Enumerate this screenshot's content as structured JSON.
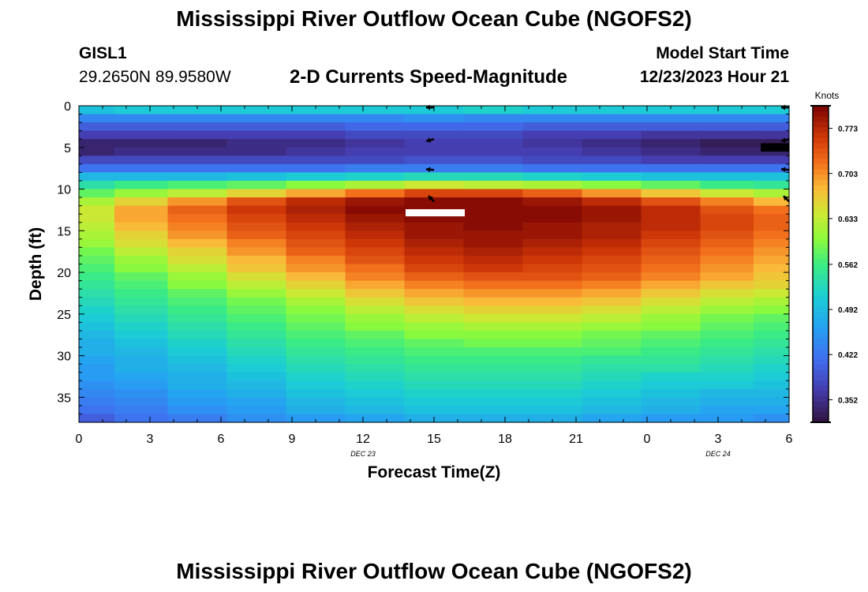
{
  "header": {
    "title": "Mississippi River Outflow Ocean Cube (NGOFS2)",
    "station_id": "GISL1",
    "coords": "29.2650N  89.9580W",
    "subtitle": "2-D Currents Speed-Magnitude",
    "model_start_label": "Model Start Time",
    "model_start_value": "12/23/2023 Hour 21"
  },
  "footer": {
    "repeat_title": "Mississippi River Outflow Ocean Cube (NGOFS2)"
  },
  "chart_data": {
    "type": "heatmap",
    "xlabel": "Forecast Time(Z)",
    "ylabel": "Depth (ft)",
    "x_range_hours": [
      0,
      30
    ],
    "x_tick_hours": [
      0,
      3,
      6,
      9,
      12,
      15,
      18,
      21,
      24,
      27,
      30
    ],
    "x_tick_labels": [
      "0",
      "3",
      "6",
      "9",
      "12",
      "15",
      "18",
      "21",
      "0",
      "3",
      "6"
    ],
    "date_labels": [
      {
        "hour": 12,
        "text": "DEC 23"
      },
      {
        "hour": 27,
        "text": "DEC 24"
      }
    ],
    "y_range_ft": [
      0,
      38
    ],
    "y_ticks": [
      0,
      5,
      10,
      15,
      20,
      25,
      30,
      35
    ],
    "y_tick_labels": [
      "0",
      "5",
      "10",
      "15",
      "20",
      "25",
      "30",
      "35"
    ],
    "colorbar": {
      "unit": "Knots",
      "min": 0.317,
      "max": 0.808,
      "tick_values": [
        0.352,
        0.422,
        0.492,
        0.562,
        0.633,
        0.703,
        0.773
      ],
      "tick_labels": [
        "0.352",
        "0.422",
        "0.492",
        "0.562",
        "0.633",
        "0.703",
        "0.773"
      ]
    },
    "time_columns_hours": [
      0.5,
      2.5,
      5,
      7.5,
      10,
      12.5,
      15,
      17.5,
      20,
      22.5,
      25,
      27.5,
      29.5
    ],
    "depth_rows_ft": [
      0.5,
      1.5,
      2.5,
      3.5,
      4.5,
      5.5,
      6.5,
      7.5,
      8.5,
      9.5,
      10.5,
      11.5,
      12.5,
      13.5,
      14.5,
      15.5,
      16.5,
      17.5,
      18.5,
      19.5,
      20.5,
      21.5,
      22.5,
      23.5,
      24.5,
      25.5,
      26.5,
      27.5,
      28.5,
      29.5,
      30.5,
      31.5,
      32.5,
      33.5,
      34.5,
      35.5,
      36.5,
      37.5
    ],
    "speed_knots": [
      [
        0.5,
        0.51,
        0.51,
        0.51,
        0.51,
        0.51,
        0.51,
        0.52,
        0.51,
        0.51,
        0.51,
        0.51,
        0.51
      ],
      [
        0.44,
        0.44,
        0.44,
        0.44,
        0.44,
        0.44,
        0.45,
        0.44,
        0.44,
        0.44,
        0.44,
        0.44,
        0.44
      ],
      [
        0.4,
        0.4,
        0.4,
        0.4,
        0.4,
        0.41,
        0.41,
        0.41,
        0.4,
        0.4,
        0.4,
        0.4,
        0.4
      ],
      [
        0.37,
        0.37,
        0.37,
        0.37,
        0.37,
        0.38,
        0.38,
        0.38,
        0.37,
        0.37,
        0.36,
        0.36,
        0.36
      ],
      [
        0.34,
        0.34,
        0.34,
        0.35,
        0.35,
        0.36,
        0.37,
        0.37,
        0.36,
        0.35,
        0.34,
        0.33,
        0.33
      ],
      [
        0.34,
        0.35,
        0.35,
        0.35,
        0.36,
        0.37,
        0.37,
        0.37,
        0.37,
        0.36,
        0.35,
        0.34,
        0.34
      ],
      [
        0.38,
        0.38,
        0.38,
        0.38,
        0.38,
        0.38,
        0.39,
        0.39,
        0.38,
        0.38,
        0.37,
        0.37,
        0.37
      ],
      [
        0.42,
        0.42,
        0.42,
        0.42,
        0.42,
        0.43,
        0.43,
        0.43,
        0.42,
        0.42,
        0.42,
        0.42,
        0.42
      ],
      [
        0.49,
        0.49,
        0.49,
        0.5,
        0.51,
        0.52,
        0.53,
        0.53,
        0.52,
        0.51,
        0.5,
        0.5,
        0.5
      ],
      [
        0.54,
        0.56,
        0.57,
        0.58,
        0.6,
        0.62,
        0.64,
        0.63,
        0.62,
        0.6,
        0.58,
        0.56,
        0.55
      ],
      [
        0.58,
        0.61,
        0.63,
        0.66,
        0.69,
        0.72,
        0.75,
        0.75,
        0.73,
        0.7,
        0.67,
        0.64,
        0.62
      ],
      [
        0.62,
        0.66,
        0.7,
        0.74,
        0.77,
        0.79,
        0.8,
        0.8,
        0.79,
        0.77,
        0.74,
        0.71,
        0.68
      ],
      [
        0.64,
        0.69,
        0.73,
        0.76,
        0.78,
        0.8,
        0.8,
        0.8,
        0.8,
        0.79,
        0.77,
        0.74,
        0.72
      ],
      [
        0.64,
        0.69,
        0.72,
        0.75,
        0.77,
        0.79,
        0.8,
        0.8,
        0.8,
        0.79,
        0.77,
        0.75,
        0.73
      ],
      [
        0.63,
        0.68,
        0.71,
        0.74,
        0.76,
        0.78,
        0.79,
        0.8,
        0.79,
        0.78,
        0.77,
        0.75,
        0.73
      ],
      [
        0.62,
        0.66,
        0.7,
        0.73,
        0.75,
        0.77,
        0.79,
        0.79,
        0.79,
        0.78,
        0.76,
        0.74,
        0.72
      ],
      [
        0.61,
        0.65,
        0.68,
        0.71,
        0.74,
        0.76,
        0.78,
        0.79,
        0.78,
        0.77,
        0.75,
        0.73,
        0.71
      ],
      [
        0.59,
        0.63,
        0.66,
        0.7,
        0.73,
        0.75,
        0.77,
        0.78,
        0.77,
        0.76,
        0.74,
        0.72,
        0.7
      ],
      [
        0.58,
        0.61,
        0.65,
        0.68,
        0.71,
        0.74,
        0.76,
        0.77,
        0.76,
        0.75,
        0.73,
        0.71,
        0.69
      ],
      [
        0.57,
        0.6,
        0.63,
        0.67,
        0.7,
        0.72,
        0.75,
        0.76,
        0.75,
        0.74,
        0.72,
        0.7,
        0.68
      ],
      [
        0.56,
        0.58,
        0.61,
        0.65,
        0.68,
        0.71,
        0.73,
        0.74,
        0.74,
        0.73,
        0.71,
        0.69,
        0.67
      ],
      [
        0.55,
        0.57,
        0.6,
        0.63,
        0.66,
        0.69,
        0.71,
        0.72,
        0.72,
        0.71,
        0.69,
        0.67,
        0.66
      ],
      [
        0.54,
        0.56,
        0.58,
        0.61,
        0.64,
        0.67,
        0.69,
        0.7,
        0.7,
        0.69,
        0.67,
        0.65,
        0.64
      ],
      [
        0.53,
        0.55,
        0.57,
        0.59,
        0.62,
        0.65,
        0.67,
        0.68,
        0.68,
        0.67,
        0.65,
        0.63,
        0.62
      ],
      [
        0.52,
        0.54,
        0.56,
        0.58,
        0.6,
        0.63,
        0.65,
        0.66,
        0.66,
        0.65,
        0.63,
        0.61,
        0.6
      ],
      [
        0.51,
        0.53,
        0.55,
        0.57,
        0.59,
        0.61,
        0.63,
        0.64,
        0.64,
        0.63,
        0.61,
        0.59,
        0.58
      ],
      [
        0.5,
        0.52,
        0.54,
        0.56,
        0.58,
        0.6,
        0.61,
        0.62,
        0.62,
        0.61,
        0.6,
        0.58,
        0.57
      ],
      [
        0.49,
        0.51,
        0.53,
        0.55,
        0.57,
        0.58,
        0.6,
        0.6,
        0.6,
        0.59,
        0.58,
        0.57,
        0.56
      ],
      [
        0.48,
        0.5,
        0.52,
        0.54,
        0.56,
        0.57,
        0.58,
        0.59,
        0.59,
        0.58,
        0.57,
        0.56,
        0.55
      ],
      [
        0.48,
        0.49,
        0.51,
        0.53,
        0.55,
        0.56,
        0.57,
        0.57,
        0.57,
        0.57,
        0.56,
        0.55,
        0.54
      ],
      [
        0.47,
        0.48,
        0.5,
        0.52,
        0.54,
        0.55,
        0.56,
        0.56,
        0.56,
        0.55,
        0.55,
        0.54,
        0.53
      ],
      [
        0.46,
        0.48,
        0.49,
        0.51,
        0.53,
        0.54,
        0.55,
        0.55,
        0.55,
        0.54,
        0.54,
        0.53,
        0.52
      ],
      [
        0.46,
        0.47,
        0.48,
        0.5,
        0.52,
        0.53,
        0.54,
        0.54,
        0.54,
        0.53,
        0.52,
        0.52,
        0.51
      ],
      [
        0.45,
        0.46,
        0.48,
        0.49,
        0.51,
        0.52,
        0.53,
        0.53,
        0.53,
        0.52,
        0.51,
        0.51,
        0.5
      ],
      [
        0.44,
        0.45,
        0.47,
        0.48,
        0.5,
        0.51,
        0.52,
        0.52,
        0.52,
        0.51,
        0.5,
        0.49,
        0.49
      ],
      [
        0.43,
        0.44,
        0.46,
        0.47,
        0.49,
        0.5,
        0.51,
        0.51,
        0.51,
        0.5,
        0.49,
        0.48,
        0.48
      ],
      [
        0.42,
        0.43,
        0.45,
        0.46,
        0.48,
        0.49,
        0.5,
        0.5,
        0.5,
        0.49,
        0.48,
        0.47,
        0.47
      ],
      [
        0.4,
        0.42,
        0.43,
        0.45,
        0.46,
        0.47,
        0.48,
        0.48,
        0.48,
        0.47,
        0.46,
        0.46,
        0.45
      ]
    ],
    "direction_arrows": [
      {
        "hour": 15,
        "depth_ft": 0.2,
        "direction_deg": 270
      },
      {
        "hour": 15,
        "depth_ft": 4.0,
        "direction_deg": 255
      },
      {
        "hour": 15,
        "depth_ft": 7.7,
        "direction_deg": 275
      },
      {
        "hour": 15,
        "depth_ft": 11.5,
        "direction_deg": 315
      },
      {
        "hour": 30,
        "depth_ft": 0.2,
        "direction_deg": 270
      },
      {
        "hour": 30,
        "depth_ft": 4.0,
        "direction_deg": 255
      },
      {
        "hour": 30,
        "depth_ft": 7.7,
        "direction_deg": 275
      },
      {
        "hour": 30,
        "depth_ft": 11.5,
        "direction_deg": 315
      }
    ],
    "scale_bar": {
      "hour_start": 13.8,
      "hour_end": 16.3,
      "depth_ft": 12.8
    }
  }
}
